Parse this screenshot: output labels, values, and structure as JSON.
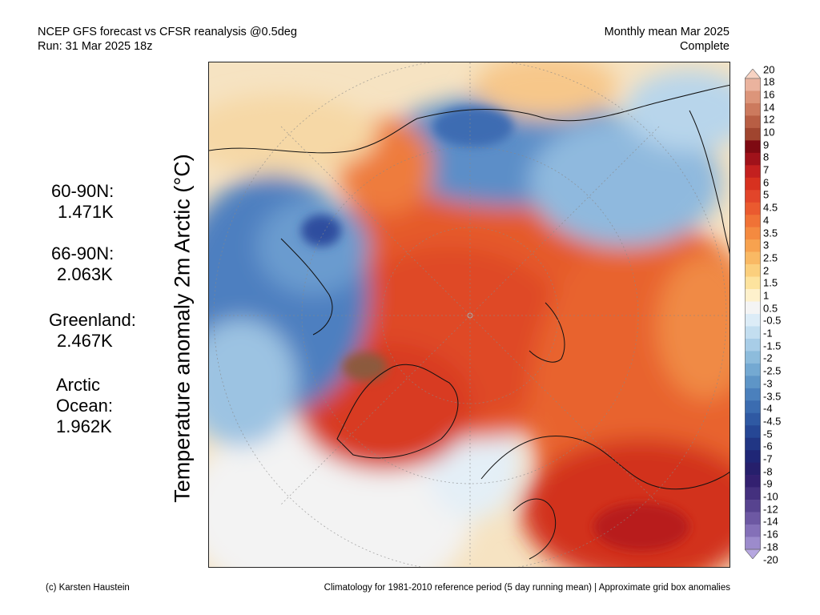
{
  "header": {
    "line1": "NCEP GFS forecast vs CFSR reanalysis @0.5deg",
    "line2": "Run: 31 Mar 2025 18z",
    "right_line1": "Monthly mean Mar 2025",
    "right_line2": "Complete"
  },
  "axis_label": "Temperature anomaly 2m Arctic (°C)",
  "stats": [
    {
      "label": "60-90N:",
      "value": "1.471K"
    },
    {
      "label": "66-90N:",
      "value": "2.063K"
    },
    {
      "label": "Greenland:",
      "value": "2.467K"
    },
    {
      "label": "Arctic",
      "label2": "Ocean:",
      "value": "1.962K"
    }
  ],
  "footer": {
    "left": "(c) Karsten Haustein",
    "right": "Climatology for 1981-2010 reference period (5 day running mean) | Approximate grid box anomalies"
  },
  "colorbar": {
    "levels": [
      "20",
      "18",
      "16",
      "14",
      "12",
      "10",
      "9",
      "8",
      "7",
      "6",
      "5",
      "4.5",
      "4",
      "3.5",
      "3",
      "2.5",
      "2",
      "1.5",
      "1",
      "0.5",
      "-0.5",
      "-1",
      "-1.5",
      "-2",
      "-2.5",
      "-3",
      "-3.5",
      "-4",
      "-4.5",
      "-5",
      "-6",
      "-7",
      "-8",
      "-9",
      "-10",
      "-12",
      "-14",
      "-16",
      "-18",
      "-20"
    ],
    "colors": [
      "#f7d3c3",
      "#eab39e",
      "#dc957a",
      "#cc7a5e",
      "#b85e44",
      "#a0452f",
      "#7e0a12",
      "#a0121a",
      "#c3201f",
      "#d7311f",
      "#e2452a",
      "#ea5a2f",
      "#f07236",
      "#f48a40",
      "#f7a24f",
      "#f9b964",
      "#fbcf7d",
      "#fde39e",
      "#fef1cc",
      "#f4f4f4",
      "#dcecf7",
      "#c3def0",
      "#a8cde7",
      "#8dbcdc",
      "#74a9d2",
      "#5e95c7",
      "#4b80bc",
      "#3b6cb0",
      "#2f59a3",
      "#264795",
      "#213684",
      "#1f2676",
      "#261f6c",
      "#332070",
      "#44307e",
      "#57438f",
      "#6d58a3",
      "#8470b8",
      "#9c8bcc",
      "#b6a7e0"
    ]
  }
}
